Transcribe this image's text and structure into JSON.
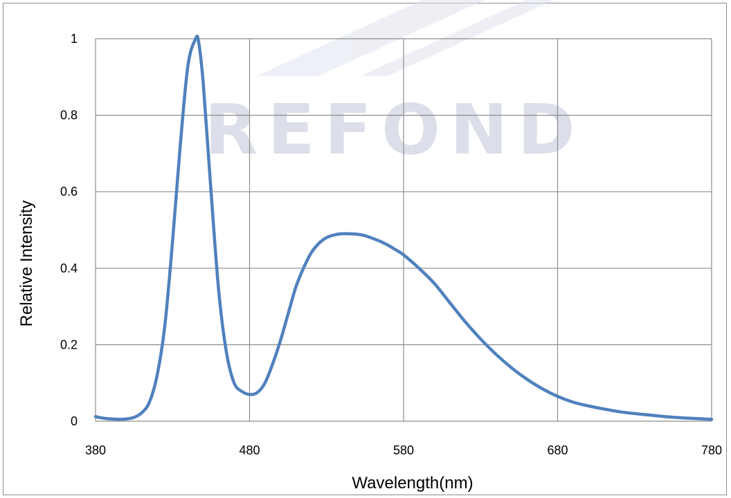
{
  "chart_data": {
    "type": "line",
    "title": "",
    "xlabel": "Wavelength(nm)",
    "ylabel": "Relative Intensity",
    "xlim": [
      380,
      780
    ],
    "ylim": [
      0,
      1
    ],
    "x_ticks": [
      "380",
      "480",
      "580",
      "680",
      "780"
    ],
    "y_ticks": [
      "0",
      "0.2",
      "0.4",
      "0.6",
      "0.8",
      "1"
    ],
    "grid": true,
    "legend": "none",
    "series": [
      {
        "color": "#4f81bd",
        "x": [
          380,
          385,
          390,
          395,
          400,
          405,
          410,
          415,
          420,
          425,
          430,
          435,
          440,
          445,
          447,
          450,
          455,
          460,
          465,
          470,
          475,
          480,
          485,
          490,
          495,
          500,
          505,
          510,
          515,
          520,
          525,
          530,
          535,
          540,
          545,
          550,
          555,
          560,
          565,
          570,
          575,
          580,
          590,
          600,
          610,
          620,
          630,
          640,
          650,
          660,
          670,
          680,
          690,
          700,
          710,
          720,
          730,
          740,
          750,
          760,
          770,
          780
        ],
        "y": [
          0.012,
          0.008,
          0.006,
          0.005,
          0.006,
          0.01,
          0.022,
          0.05,
          0.12,
          0.25,
          0.47,
          0.72,
          0.93,
          1.0,
          0.99,
          0.88,
          0.6,
          0.34,
          0.18,
          0.1,
          0.078,
          0.07,
          0.075,
          0.1,
          0.15,
          0.21,
          0.28,
          0.35,
          0.4,
          0.44,
          0.465,
          0.48,
          0.487,
          0.49,
          0.49,
          0.489,
          0.485,
          0.478,
          0.47,
          0.46,
          0.448,
          0.435,
          0.4,
          0.36,
          0.31,
          0.26,
          0.215,
          0.175,
          0.14,
          0.11,
          0.085,
          0.065,
          0.05,
          0.04,
          0.032,
          0.025,
          0.02,
          0.016,
          0.012,
          0.009,
          0.007,
          0.005
        ]
      }
    ]
  },
  "watermark": {
    "text": "REFOND",
    "color": "#dcdfe9"
  }
}
